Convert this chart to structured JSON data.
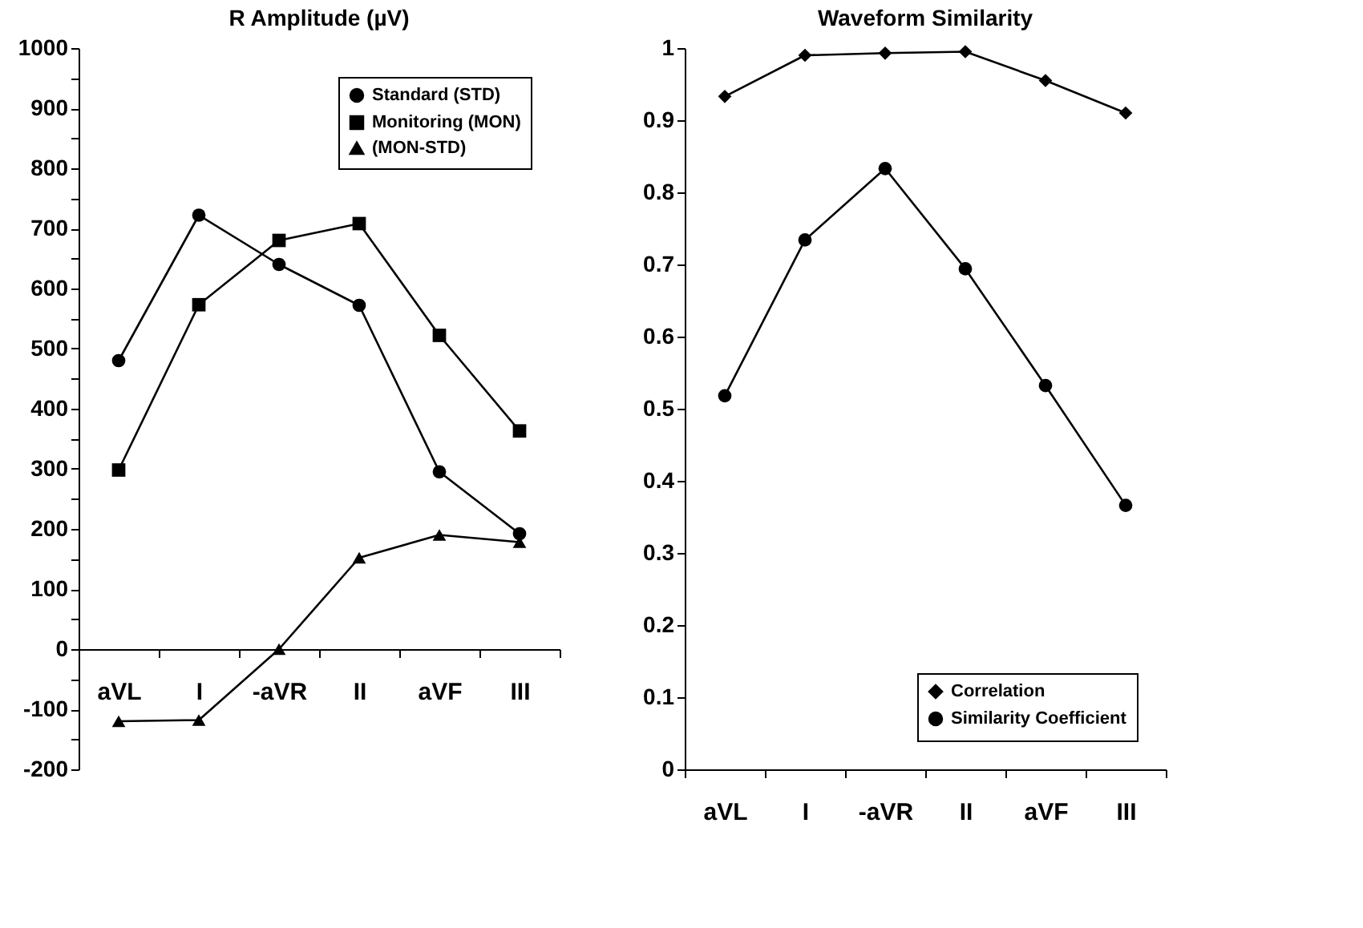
{
  "chart_data": [
    {
      "type": "line",
      "title": "R Amplitude (µV)",
      "categories": [
        "aVL",
        "I",
        "-aVR",
        "II",
        "aVF",
        "III"
      ],
      "ylim": [
        -200,
        1000
      ],
      "yticks": [
        -200,
        {
          "value": -150,
          "label": null
        },
        -100,
        {
          "value": -50,
          "label": null
        },
        0,
        {
          "value": 50,
          "label": null
        },
        100,
        {
          "value": 150,
          "label": null
        },
        200,
        {
          "value": 250,
          "label": null
        },
        300,
        {
          "value": 350,
          "label": null
        },
        400,
        {
          "value": 450,
          "label": null
        },
        500,
        {
          "value": 550,
          "label": null
        },
        600,
        {
          "value": 650,
          "label": null
        },
        700,
        {
          "value": 750,
          "label": null
        },
        800,
        {
          "value": 850,
          "label": null
        },
        900,
        {
          "value": 950,
          "label": null
        },
        1000
      ],
      "legend": "top right",
      "grid": false,
      "series": [
        {
          "name": "Standard (STD)",
          "color": "#000000",
          "marker": "circle",
          "values": [
            480,
            722,
            640,
            572,
            295,
            192
          ]
        },
        {
          "name": "Monitoring (MON)",
          "color": "#000000",
          "marker": "square",
          "values": [
            298,
            573,
            680,
            708,
            522,
            363
          ]
        },
        {
          "name": "(MON-STD)",
          "color": "#000000",
          "marker": "triangle",
          "values": [
            -120,
            -118,
            0,
            152,
            190,
            178
          ]
        }
      ]
    },
    {
      "type": "line",
      "title": "Waveform Similarity",
      "categories": [
        "aVL",
        "I",
        "-aVR",
        "II",
        "aVF",
        "III"
      ],
      "ylim": [
        0,
        1
      ],
      "yticks": [
        0,
        0.1,
        0.2,
        0.3,
        0.4,
        0.5,
        0.6,
        0.7,
        0.8,
        0.9,
        1
      ],
      "legend": "bottom right",
      "grid": false,
      "series": [
        {
          "name": "Correlation",
          "color": "#000000",
          "marker": "diamond",
          "values": [
            0.933,
            0.99,
            0.993,
            0.995,
            0.955,
            0.91
          ]
        },
        {
          "name": "Similarity Coefficient",
          "color": "#000000",
          "marker": "circle",
          "values": [
            0.518,
            0.734,
            0.833,
            0.694,
            0.532,
            0.366
          ]
        }
      ]
    }
  ]
}
